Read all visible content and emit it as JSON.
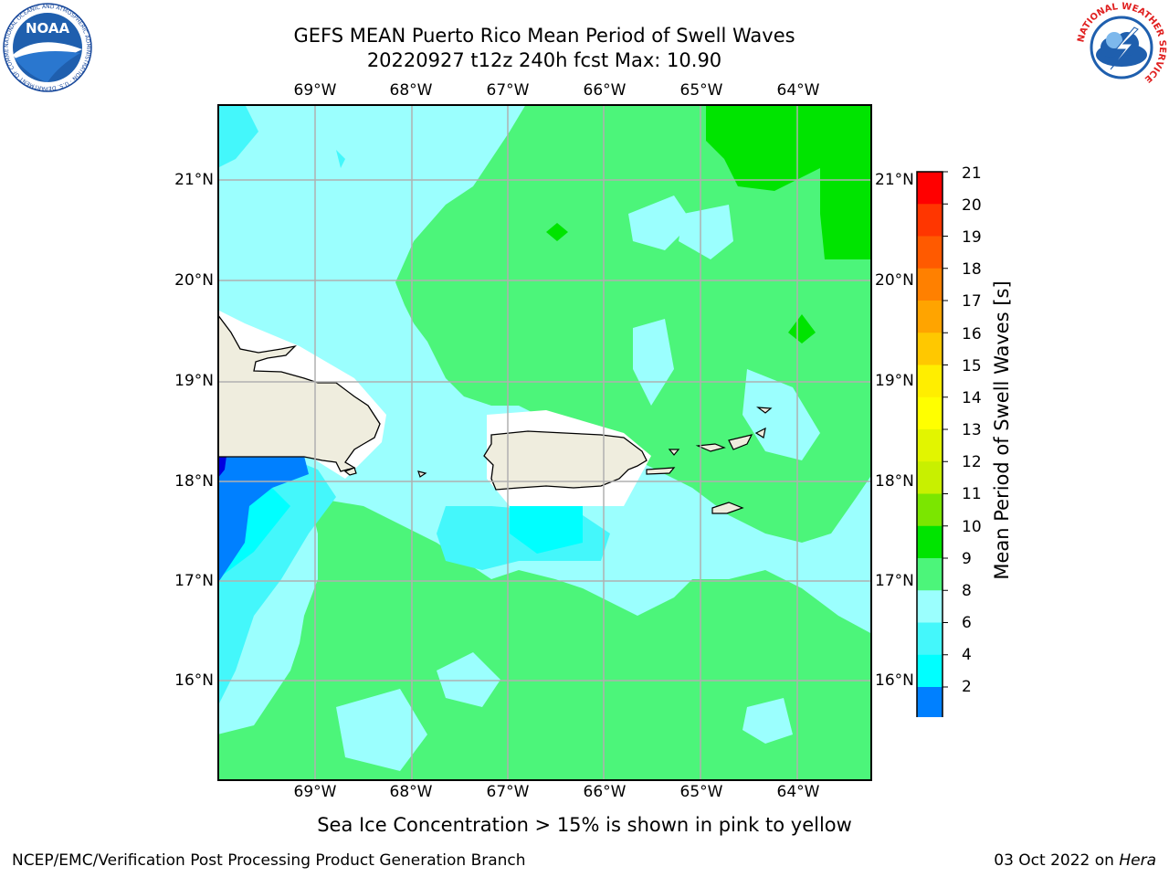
{
  "header": {
    "title_line1": "GEFS MEAN Puerto Rico Mean Period of Swell Waves",
    "title_line2": "20220927 t12z 240h fcst   Max: 10.90"
  },
  "logos": {
    "noaa_text": "NOAA",
    "noaa_ring": "NATIONAL OCEANIC AND ATMOSPHERIC ADMINISTRATION · U.S. DEPARTMENT OF COMMERCE",
    "nws_ring": "NATIONAL WEATHER SERVICE"
  },
  "map": {
    "lon_labels": [
      "69°W",
      "68°W",
      "67°W",
      "66°W",
      "65°W",
      "64°W"
    ],
    "lat_labels": [
      "21°N",
      "20°N",
      "19°N",
      "18°N",
      "17°N",
      "16°N"
    ],
    "colors": {
      "land": "#efedde",
      "ocean_cyan_light": "#9bfffe",
      "green_9_10": "#4cf57a",
      "green_10_11": "#00e400",
      "cyan_6_8": "#00ffff",
      "cyan_mid": "#44f7fb",
      "blue_2_4": "#0080ff",
      "blue_low": "#0000e0"
    }
  },
  "colorbar": {
    "label": "Mean Period of Swell Waves [s]",
    "ticks": [
      "21",
      "20",
      "19",
      "18",
      "17",
      "16",
      "15",
      "14",
      "13",
      "12",
      "11",
      "10",
      "9",
      "8",
      "6",
      "4",
      "2"
    ],
    "colors": [
      "#ff0000",
      "#ff3600",
      "#ff5a00",
      "#ff8000",
      "#ffa400",
      "#ffc800",
      "#ffee00",
      "#ffff00",
      "#e2f500",
      "#c8f000",
      "#7be600",
      "#00e400",
      "#4cf57a",
      "#9bfffe",
      "#44f7fb",
      "#00ffff",
      "#0080ff"
    ],
    "under_color": "#0000e0"
  },
  "footer": {
    "note": "Sea Ice Concentration > 15% is shown in pink to yellow",
    "left": "NCEP/EMC/Verification Post Processing Product Generation Branch",
    "right_prefix": "03 Oct 2022 on ",
    "right_machine": "Hera"
  }
}
